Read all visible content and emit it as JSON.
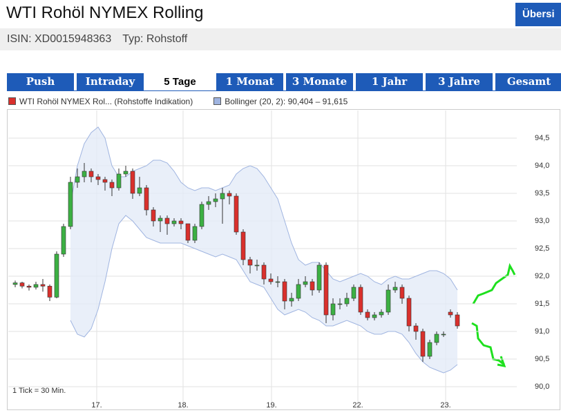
{
  "header": {
    "title": "WTI Rohöl NYMEX Rolling",
    "button": "Übersi",
    "isin": "ISIN: XD0015948363",
    "typ": "Typ: Rohstoff"
  },
  "tabs": [
    "Push",
    "Intraday",
    "5 Tage",
    "1 Monat",
    "3 Monate",
    "1 Jahr",
    "3 Jahre",
    "Gesamt"
  ],
  "chart_data": {
    "type": "candlestick",
    "note": "1 Tick = 30 Min.",
    "xlim": [
      -1,
      72.6
    ],
    "xticks": [
      {
        "value": 11.8,
        "label": "17."
      },
      {
        "value": 24.3,
        "label": "18."
      },
      {
        "value": 37.1,
        "label": "19."
      },
      {
        "value": 49.6,
        "label": "22."
      },
      {
        "value": 62.3,
        "label": "23."
      }
    ],
    "ylim": [
      89.8,
      95.0
    ],
    "yticks": [
      {
        "value": 90.0,
        "label": "90,0"
      },
      {
        "value": 90.5,
        "label": "90,5"
      },
      {
        "value": 91.0,
        "label": "91,0"
      },
      {
        "value": 91.5,
        "label": "91,5"
      },
      {
        "value": 92.0,
        "label": "92,0"
      },
      {
        "value": 92.5,
        "label": "92,5"
      },
      {
        "value": 93.0,
        "label": "93,0"
      },
      {
        "value": 93.5,
        "label": "93,5"
      },
      {
        "value": 94.0,
        "label": "94,0"
      },
      {
        "value": 94.5,
        "label": "94,5"
      }
    ],
    "grid": true,
    "series": [
      {
        "name": "WTI Rohöl NYMEX Rol... (Rohstoffe Indikation)",
        "color": "#d9302c",
        "up_color": "#3cb043",
        "down_color": "#d9302c",
        "ohlc": [
          [
            91.85,
            91.92,
            91.8,
            91.88
          ],
          [
            91.88,
            91.9,
            91.78,
            91.82
          ],
          [
            91.82,
            91.85,
            91.74,
            91.8
          ],
          [
            91.8,
            91.9,
            91.76,
            91.85
          ],
          [
            91.85,
            91.95,
            91.72,
            91.82
          ],
          [
            91.82,
            91.85,
            91.55,
            91.62
          ],
          [
            91.62,
            92.45,
            91.6,
            92.4
          ],
          [
            92.4,
            92.95,
            92.35,
            92.9
          ],
          [
            92.9,
            93.8,
            92.85,
            93.7
          ],
          [
            93.7,
            93.95,
            93.6,
            93.8
          ],
          [
            93.8,
            94.05,
            93.7,
            93.9
          ],
          [
            93.9,
            93.95,
            93.7,
            93.8
          ],
          [
            93.8,
            93.85,
            93.65,
            93.75
          ],
          [
            93.75,
            93.8,
            93.55,
            93.7
          ],
          [
            93.7,
            93.75,
            93.45,
            93.6
          ],
          [
            93.6,
            93.95,
            93.55,
            93.85
          ],
          [
            93.85,
            94.0,
            93.8,
            93.9
          ],
          [
            93.9,
            93.95,
            93.4,
            93.5
          ],
          [
            93.5,
            93.8,
            93.45,
            93.6
          ],
          [
            93.6,
            93.65,
            93.1,
            93.2
          ],
          [
            93.2,
            93.25,
            92.9,
            93.0
          ],
          [
            93.0,
            93.1,
            92.8,
            93.05
          ],
          [
            93.05,
            93.1,
            92.75,
            92.95
          ],
          [
            92.95,
            93.05,
            92.9,
            93.0
          ],
          [
            93.0,
            93.05,
            92.85,
            92.95
          ],
          [
            92.95,
            92.95,
            92.6,
            92.65
          ],
          [
            92.65,
            92.95,
            92.6,
            92.9
          ],
          [
            92.9,
            93.35,
            92.85,
            93.3
          ],
          [
            93.3,
            93.45,
            93.2,
            93.35
          ],
          [
            93.35,
            93.5,
            93.25,
            93.4
          ],
          [
            93.4,
            93.6,
            92.95,
            93.5
          ],
          [
            93.5,
            93.55,
            93.3,
            93.45
          ],
          [
            93.45,
            93.5,
            92.75,
            92.8
          ],
          [
            92.8,
            92.85,
            92.2,
            92.3
          ],
          [
            92.3,
            92.35,
            92.05,
            92.2
          ],
          [
            92.2,
            92.3,
            92.1,
            92.2
          ],
          [
            92.2,
            92.25,
            91.85,
            91.95
          ],
          [
            91.95,
            92.05,
            91.85,
            91.9
          ],
          [
            91.9,
            92.0,
            91.8,
            91.9
          ],
          [
            91.9,
            91.95,
            91.4,
            91.55
          ],
          [
            91.55,
            91.7,
            91.45,
            91.6
          ],
          [
            91.6,
            91.95,
            91.55,
            91.85
          ],
          [
            91.85,
            92.0,
            91.8,
            91.9
          ],
          [
            91.9,
            91.95,
            91.65,
            91.75
          ],
          [
            91.75,
            92.25,
            91.7,
            92.2
          ],
          [
            92.2,
            92.25,
            91.15,
            91.3
          ],
          [
            91.3,
            91.6,
            91.2,
            91.5
          ],
          [
            91.5,
            91.6,
            91.4,
            91.5
          ],
          [
            91.5,
            91.7,
            91.45,
            91.6
          ],
          [
            91.6,
            91.85,
            91.55,
            91.8
          ],
          [
            91.8,
            91.85,
            91.3,
            91.35
          ],
          [
            91.35,
            91.4,
            91.2,
            91.25
          ],
          [
            91.25,
            91.35,
            91.2,
            91.3
          ],
          [
            91.3,
            91.4,
            91.25,
            91.35
          ],
          [
            91.35,
            91.85,
            91.3,
            91.75
          ],
          [
            91.75,
            91.9,
            91.7,
            91.8
          ],
          [
            91.8,
            91.85,
            91.5,
            91.6
          ],
          [
            91.6,
            91.65,
            91.0,
            91.1
          ],
          [
            91.1,
            91.15,
            90.85,
            91.0
          ],
          [
            91.0,
            91.05,
            90.45,
            90.55
          ],
          [
            90.55,
            90.85,
            90.5,
            90.8
          ],
          [
            90.8,
            91.0,
            90.75,
            90.95
          ],
          [
            90.95,
            91.0,
            90.9,
            90.95
          ],
          [
            91.35,
            91.4,
            91.25,
            91.3
          ],
          [
            91.3,
            91.35,
            91.05,
            91.1
          ]
        ]
      },
      {
        "name": "Bollinger (20, 2): 90,404 – 91,615",
        "color": "#9fb4e0",
        "fill": "#e3ebf8",
        "upper": [
          null,
          null,
          null,
          null,
          null,
          null,
          null,
          null,
          93.3,
          94.0,
          94.4,
          94.6,
          94.7,
          94.5,
          94.0,
          93.8,
          93.8,
          93.9,
          93.95,
          94.0,
          94.1,
          94.1,
          94.05,
          93.9,
          93.7,
          93.6,
          93.55,
          93.6,
          93.6,
          93.55,
          93.6,
          93.65,
          93.85,
          93.95,
          94.0,
          93.95,
          93.8,
          93.6,
          93.4,
          93.0,
          92.6,
          92.3,
          92.2,
          92.25,
          92.25,
          92.1,
          91.95,
          91.9,
          91.95,
          92.0,
          92.05,
          92.0,
          91.9,
          91.85,
          91.95,
          92.0,
          91.95,
          91.95,
          92.0,
          92.05,
          92.1,
          92.1,
          92.05,
          91.95,
          91.75
        ],
        "lower": [
          null,
          null,
          null,
          null,
          null,
          null,
          null,
          null,
          91.2,
          90.95,
          90.9,
          91.05,
          91.4,
          91.9,
          92.5,
          92.95,
          93.1,
          93.0,
          92.85,
          92.7,
          92.65,
          92.6,
          92.6,
          92.6,
          92.6,
          92.55,
          92.5,
          92.45,
          92.4,
          92.35,
          92.4,
          92.35,
          92.3,
          92.1,
          91.9,
          91.85,
          91.8,
          91.6,
          91.4,
          91.3,
          91.35,
          91.4,
          91.35,
          91.25,
          91.2,
          91.1,
          91.1,
          91.15,
          91.2,
          91.15,
          91.1,
          91.0,
          90.95,
          90.95,
          91.0,
          91.0,
          90.95,
          90.8,
          90.6,
          90.45,
          90.35,
          90.3,
          90.25,
          90.3,
          90.4
        ]
      }
    ]
  }
}
